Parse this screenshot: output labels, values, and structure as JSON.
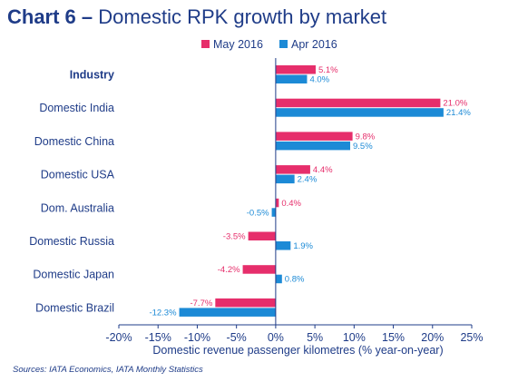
{
  "title": {
    "prefix": "Chart 6 –",
    "text": "Domestic RPK growth by market"
  },
  "source": "Sources: IATA Economics, IATA Monthly Statistics",
  "colors": {
    "title": "#1f3c88",
    "may": "#e62e6b",
    "apr": "#1c8ad6",
    "axis_text": "#1f3c88",
    "axis_line": "#1f3c88"
  },
  "chart_data": {
    "type": "bar",
    "orientation": "horizontal",
    "categories": [
      "Industry",
      "Domestic India",
      "Domestic China",
      "Domestic USA",
      "Dom. Australia",
      "Domestic Russia",
      "Domestic Japan",
      "Domestic Brazil"
    ],
    "bold_categories": [
      "Industry"
    ],
    "series": [
      {
        "name": "May 2016",
        "values": [
          5.1,
          21.0,
          9.8,
          4.4,
          0.4,
          -3.5,
          -4.2,
          -7.7
        ],
        "color": "#e62e6b"
      },
      {
        "name": "Apr 2016",
        "values": [
          4.0,
          21.4,
          9.5,
          2.4,
          -0.5,
          1.9,
          0.8,
          -12.3
        ],
        "color": "#1c8ad6"
      }
    ],
    "xlabel": "Domestic revenue passenger kilometres (% year-on-year)",
    "ylabel": "",
    "xlim": [
      -20,
      25
    ],
    "xticks": [
      -20,
      -15,
      -10,
      -5,
      0,
      5,
      10,
      15,
      20,
      25
    ],
    "xtick_labels": [
      "-20%",
      "-15%",
      "-10%",
      "-5%",
      "0%",
      "5%",
      "10%",
      "15%",
      "20%",
      "25%"
    ],
    "grid": false,
    "legend_position": "top-center"
  }
}
